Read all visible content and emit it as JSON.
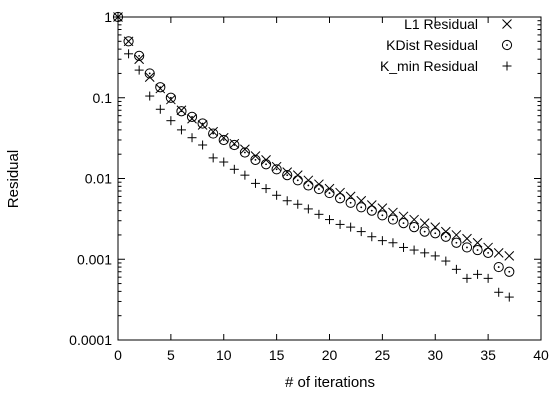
{
  "chart_data": {
    "type": "scatter",
    "xlabel": "# of iterations",
    "ylabel": "Residual",
    "xlim": [
      0,
      40
    ],
    "ylim": [
      0.0001,
      1
    ],
    "yscale": "log",
    "grid": false,
    "legend_position": "top-right",
    "x_ticks": [
      0,
      5,
      10,
      15,
      20,
      25,
      30,
      35,
      40
    ],
    "x_tick_labels": [
      "0",
      "5",
      "10",
      "15",
      "20",
      "25",
      "30",
      "35",
      "40"
    ],
    "y_ticks": [
      1,
      0.1,
      0.01,
      0.001,
      0.0001
    ],
    "y_tick_labels": [
      "1",
      "0.1",
      "0.01",
      "0.001",
      "0.0001"
    ],
    "series": [
      {
        "name": "L1 Residual",
        "marker": "x",
        "x": [
          0,
          1,
          2,
          3,
          4,
          5,
          6,
          7,
          8,
          9,
          10,
          11,
          12,
          13,
          14,
          15,
          16,
          17,
          18,
          19,
          20,
          21,
          22,
          23,
          24,
          25,
          26,
          27,
          28,
          29,
          30,
          31,
          32,
          33,
          34,
          35,
          36,
          37
        ],
        "y": [
          1,
          0.5,
          0.3,
          0.18,
          0.13,
          0.095,
          0.07,
          0.055,
          0.046,
          0.038,
          0.032,
          0.027,
          0.023,
          0.019,
          0.017,
          0.014,
          0.012,
          0.011,
          0.0095,
          0.0085,
          0.0075,
          0.0067,
          0.006,
          0.0053,
          0.0047,
          0.0043,
          0.0038,
          0.0034,
          0.0031,
          0.0028,
          0.0025,
          0.0022,
          0.002,
          0.0018,
          0.0016,
          0.0014,
          0.0012,
          0.0011
        ]
      },
      {
        "name": "KDist Residual",
        "marker": "circle",
        "x": [
          0,
          1,
          2,
          3,
          4,
          5,
          6,
          7,
          8,
          9,
          10,
          11,
          12,
          13,
          14,
          15,
          16,
          17,
          18,
          19,
          20,
          21,
          22,
          23,
          24,
          25,
          26,
          27,
          28,
          29,
          30,
          31,
          32,
          33,
          34,
          35,
          36,
          37
        ],
        "y": [
          1,
          0.5,
          0.33,
          0.2,
          0.135,
          0.1,
          0.068,
          0.058,
          0.048,
          0.036,
          0.03,
          0.026,
          0.021,
          0.017,
          0.015,
          0.013,
          0.011,
          0.0095,
          0.0082,
          0.0074,
          0.0066,
          0.0057,
          0.005,
          0.0044,
          0.004,
          0.0035,
          0.0031,
          0.0028,
          0.0025,
          0.0022,
          0.0021,
          0.0019,
          0.0016,
          0.0014,
          0.0013,
          0.0012,
          0.0008,
          0.0007
        ]
      },
      {
        "name": "K_min Residual",
        "marker": "plus",
        "x": [
          0,
          1,
          2,
          3,
          4,
          5,
          6,
          7,
          8,
          9,
          10,
          11,
          12,
          13,
          14,
          15,
          16,
          17,
          18,
          19,
          20,
          21,
          22,
          23,
          24,
          25,
          26,
          27,
          28,
          29,
          30,
          31,
          32,
          33,
          34,
          35,
          36,
          37
        ],
        "y": [
          1,
          0.35,
          0.22,
          0.105,
          0.072,
          0.052,
          0.04,
          0.032,
          0.026,
          0.018,
          0.016,
          0.013,
          0.011,
          0.0087,
          0.0075,
          0.0062,
          0.0053,
          0.0048,
          0.0042,
          0.0036,
          0.0031,
          0.0027,
          0.0025,
          0.0022,
          0.0019,
          0.0017,
          0.0016,
          0.0014,
          0.0013,
          0.0012,
          0.0011,
          0.00095,
          0.00075,
          0.00058,
          0.00065,
          0.00058,
          0.00039,
          0.00034
        ]
      }
    ]
  }
}
